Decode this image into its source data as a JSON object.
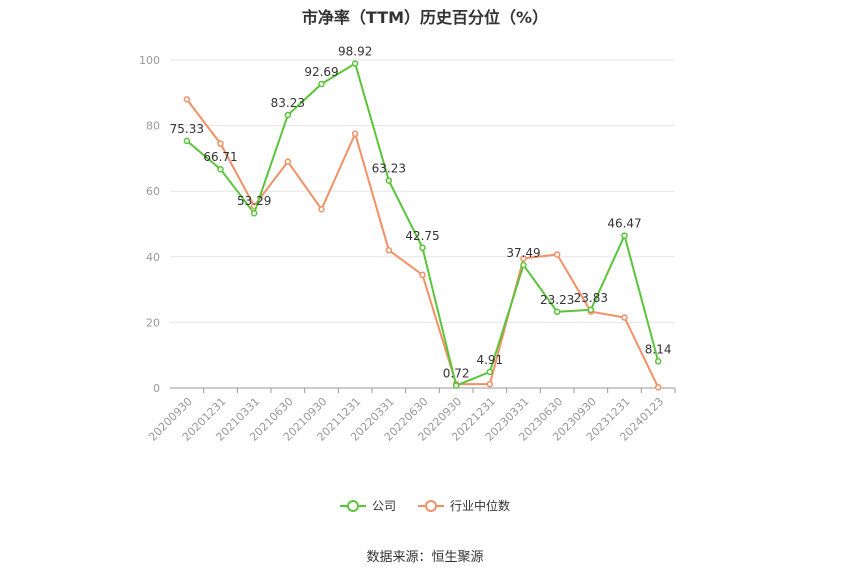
{
  "chart_data": {
    "type": "line",
    "title": "市净率（TTM）历史百分位（%）",
    "categories": [
      "20200930",
      "20201231",
      "20210331",
      "20210630",
      "20210930",
      "20211231",
      "20220331",
      "20220630",
      "20220930",
      "20221231",
      "20230331",
      "20230630",
      "20230930",
      "20231231",
      "20240123"
    ],
    "series": [
      {
        "name": "公司",
        "color": "#5ac53a",
        "values": [
          75.33,
          66.71,
          53.29,
          83.23,
          92.69,
          98.92,
          63.23,
          42.75,
          0.72,
          4.91,
          37.49,
          23.23,
          23.83,
          46.47,
          8.14
        ],
        "labels": [
          "75.33",
          "66.71",
          "53.29",
          "83.23",
          "92.69",
          "98.92",
          "63.23",
          "42.75",
          "0.72",
          "4.91",
          "37.49",
          "23.23",
          "23.83",
          "46.47",
          "8.14"
        ]
      },
      {
        "name": "行业中位数",
        "color": "#f39065",
        "values": [
          88.0,
          74.5,
          55.5,
          69.0,
          54.5,
          77.5,
          42.0,
          34.5,
          1.2,
          1.2,
          39.5,
          40.7,
          23.3,
          21.5,
          0.2
        ]
      }
    ],
    "ylim": [
      0,
      100
    ],
    "yticks": [
      "0",
      "20",
      "40",
      "60",
      "80",
      "100"
    ],
    "grid": true,
    "legend_position": "bottom"
  },
  "source_text": "数据来源：恒生聚源"
}
